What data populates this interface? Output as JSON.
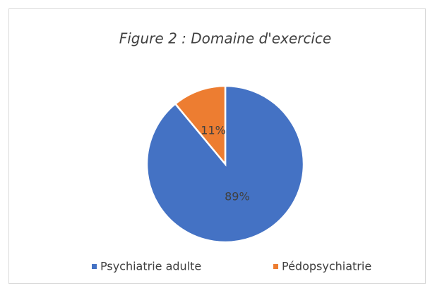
{
  "chart_data": {
    "type": "pie",
    "title": "Figure 2 : Domaine d'exercice",
    "categories": [
      "Psychiatrie adulte",
      "Pédopsychiatrie"
    ],
    "values": [
      89,
      11
    ],
    "value_labels": [
      "89%",
      "11%"
    ],
    "colors": [
      "#4472c4",
      "#ed7d31"
    ],
    "legend": "bottom"
  }
}
